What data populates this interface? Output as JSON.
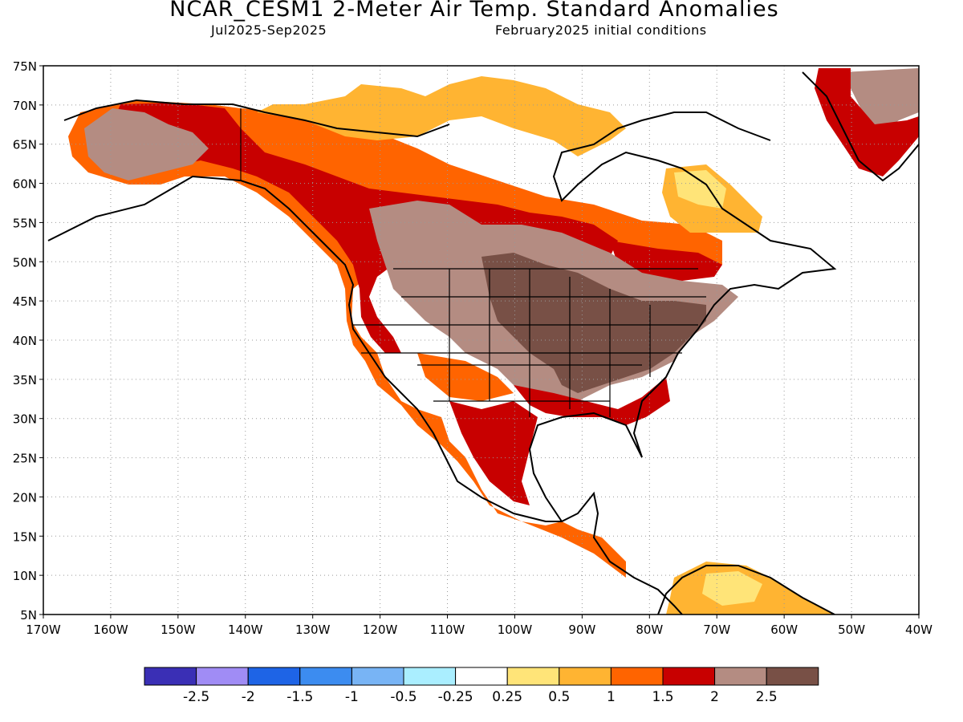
{
  "title": "NCAR_CESM1 2-Meter Air Temp. Standard Anomalies",
  "subtitle_left": "Jul2025-Sep2025",
  "subtitle_right": "February2025 initial conditions",
  "map": {
    "lon_range": [
      -170,
      -40
    ],
    "lat_range": [
      5,
      75
    ],
    "lon_labels": [
      "170W",
      "160W",
      "150W",
      "140W",
      "130W",
      "120W",
      "110W",
      "100W",
      "90W",
      "80W",
      "70W",
      "60W",
      "50W",
      "40W"
    ],
    "lat_labels": [
      "75N",
      "70N",
      "65N",
      "60N",
      "55N",
      "50N",
      "45N",
      "40N",
      "35N",
      "30N",
      "25N",
      "20N",
      "15N",
      "10N",
      "5N"
    ],
    "grid": "dotted"
  },
  "legend": {
    "bins": [
      {
        "color": "#3a2fb5"
      },
      {
        "color": "#a08cf5"
      },
      {
        "color": "#1e64e6"
      },
      {
        "color": "#3c8cf0"
      },
      {
        "color": "#78b4f5"
      },
      {
        "color": "#aaeeff"
      },
      {
        "color": "#ffffff"
      },
      {
        "color": "#ffe478"
      },
      {
        "color": "#ffb432"
      },
      {
        "color": "#ff6400"
      },
      {
        "color": "#c80000"
      },
      {
        "color": "#b48c82"
      },
      {
        "color": "#785046"
      }
    ],
    "labels": [
      "-2.5",
      "-2",
      "-1.5",
      "-1",
      "-0.5",
      "-0.25",
      "0.25",
      "0.5",
      "1",
      "1.5",
      "2",
      "2.5"
    ]
  },
  "colors": {
    "light_yellow": "#ffe478",
    "orange": "#ffb432",
    "dark_orange": "#ff6400",
    "red": "#c80000",
    "light_brown": "#b48c82",
    "dark_brown": "#785046"
  }
}
